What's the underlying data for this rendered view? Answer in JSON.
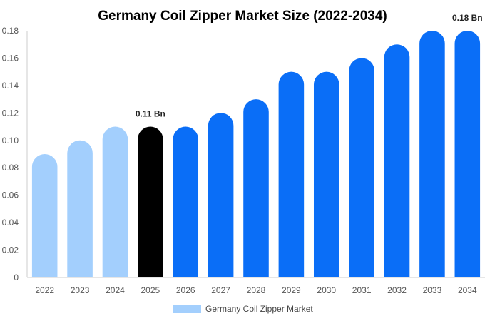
{
  "chart_data": {
    "type": "bar",
    "title": "Germany Coil Zipper Market Size (2022-2034)",
    "xlabel": "",
    "ylabel": "",
    "categories": [
      "2022",
      "2023",
      "2024",
      "2025",
      "2026",
      "2027",
      "2028",
      "2029",
      "2030",
      "2031",
      "2032",
      "2033",
      "2034"
    ],
    "series": [
      {
        "name": "Germany Coil Zipper Market",
        "values": [
          0.09,
          0.1,
          0.11,
          0.11,
          0.11,
          0.12,
          0.13,
          0.15,
          0.15,
          0.16,
          0.17,
          0.18,
          0.18
        ]
      }
    ],
    "ylim": [
      0,
      0.18
    ],
    "yticks": [
      "0",
      "0.02",
      "0.04",
      "0.06",
      "0.08",
      "0.10",
      "0.12",
      "0.14",
      "0.16",
      "0.18"
    ],
    "annotations": [
      {
        "category": "2025",
        "text": "0.11 Bn"
      },
      {
        "category": "2034",
        "text": "0.18 Bn"
      }
    ],
    "grid": false,
    "legend": "bottom",
    "colors": {
      "historical": "#a3cffd",
      "highlight": "#000000",
      "forecast": "#0a6ef7",
      "legend_swatch": "#a3cffd"
    },
    "historical_count": 3,
    "highlight_category": "2025"
  }
}
